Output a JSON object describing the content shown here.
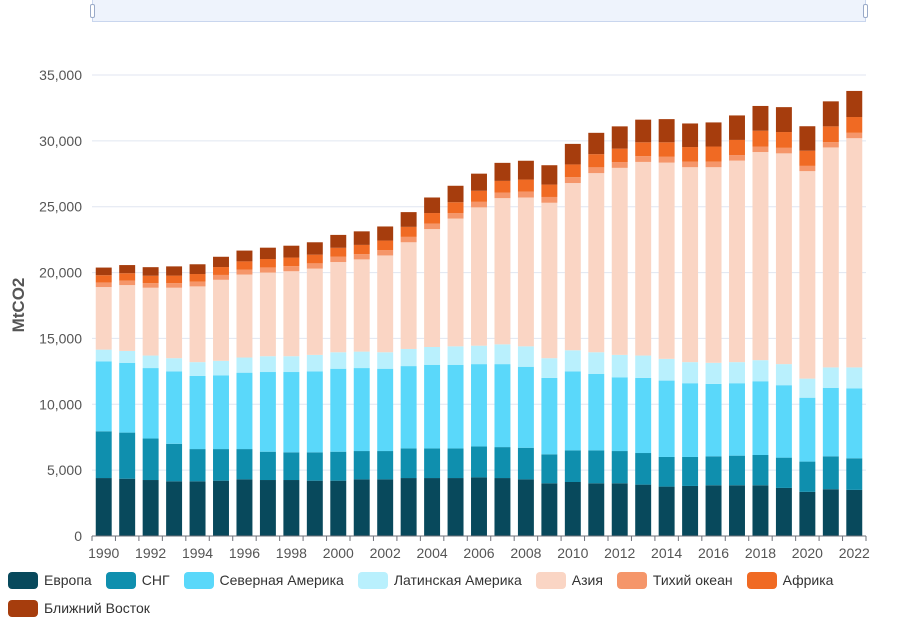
{
  "chart_data": {
    "type": "bar",
    "stacked": true,
    "title": "",
    "xlabel": "",
    "ylabel": "MtCO2",
    "ylim": [
      0,
      35000
    ],
    "yticks": [
      0,
      5000,
      10000,
      15000,
      20000,
      25000,
      30000,
      35000
    ],
    "ytick_labels": [
      "0",
      "5,000",
      "10,000",
      "15,000",
      "20,000",
      "25,000",
      "30,000",
      "35,000"
    ],
    "xtick_labels": [
      "1990",
      "1992",
      "1994",
      "1996",
      "1998",
      "2000",
      "2002",
      "2004",
      "2006",
      "2008",
      "2010",
      "2012",
      "2014",
      "2016",
      "2018",
      "2020",
      "2022"
    ],
    "legend_position": "bottom",
    "grid": true,
    "categories": [
      "1990",
      "1991",
      "1992",
      "1993",
      "1994",
      "1995",
      "1996",
      "1997",
      "1998",
      "1999",
      "2000",
      "2001",
      "2002",
      "2003",
      "2004",
      "2005",
      "2006",
      "2007",
      "2008",
      "2009",
      "2010",
      "2011",
      "2012",
      "2013",
      "2014",
      "2015",
      "2016",
      "2017",
      "2018",
      "2019",
      "2020",
      "2021",
      "2022"
    ],
    "series": [
      {
        "name": "Европа",
        "color": "#08495c",
        "values": [
          4400,
          4350,
          4250,
          4150,
          4150,
          4200,
          4300,
          4250,
          4250,
          4200,
          4200,
          4300,
          4300,
          4400,
          4400,
          4400,
          4450,
          4400,
          4300,
          4000,
          4100,
          4000,
          4000,
          3900,
          3750,
          3800,
          3850,
          3850,
          3850,
          3650,
          3350,
          3550,
          3500
        ]
      },
      {
        "name": "СНГ",
        "color": "#0f8fae",
        "values": [
          3550,
          3500,
          3150,
          2850,
          2450,
          2400,
          2300,
          2150,
          2100,
          2150,
          2200,
          2150,
          2150,
          2250,
          2250,
          2250,
          2350,
          2350,
          2400,
          2200,
          2400,
          2500,
          2450,
          2400,
          2250,
          2200,
          2200,
          2250,
          2300,
          2300,
          2300,
          2500,
          2400
        ]
      },
      {
        "name": "Северная Америка",
        "color": "#5ad8fa",
        "values": [
          5300,
          5300,
          5350,
          5500,
          5550,
          5600,
          5800,
          6050,
          6100,
          6150,
          6300,
          6300,
          6250,
          6250,
          6350,
          6350,
          6250,
          6300,
          6150,
          5800,
          6000,
          5800,
          5600,
          5700,
          5800,
          5600,
          5500,
          5500,
          5600,
          5500,
          4850,
          5200,
          5300
        ]
      },
      {
        "name": "Латинская Америка",
        "color": "#b9f0fd",
        "values": [
          900,
          900,
          950,
          1000,
          1050,
          1100,
          1150,
          1200,
          1200,
          1250,
          1250,
          1250,
          1250,
          1300,
          1350,
          1400,
          1400,
          1500,
          1550,
          1500,
          1600,
          1650,
          1700,
          1700,
          1650,
          1600,
          1600,
          1600,
          1600,
          1600,
          1450,
          1550,
          1600
        ]
      },
      {
        "name": "Азия",
        "color": "#fad5c4",
        "values": [
          4750,
          5000,
          5150,
          5350,
          5750,
          6150,
          6300,
          6350,
          6450,
          6550,
          6850,
          7000,
          7350,
          8100,
          8950,
          9700,
          10500,
          11100,
          11300,
          11800,
          12700,
          13600,
          14200,
          14700,
          14900,
          14800,
          14850,
          15300,
          15800,
          16000,
          15750,
          16700,
          17400
        ]
      },
      {
        "name": "Тихий океан",
        "color": "#f5966a",
        "values": [
          350,
          350,
          350,
          350,
          360,
          370,
          380,
          390,
          390,
          400,
          400,
          400,
          410,
          410,
          420,
          420,
          420,
          430,
          440,
          440,
          440,
          440,
          440,
          440,
          440,
          430,
          420,
          420,
          420,
          420,
          400,
          400,
          410
        ]
      },
      {
        "name": "Африка",
        "color": "#f06a23",
        "values": [
          550,
          550,
          560,
          570,
          580,
          600,
          620,
          640,
          650,
          660,
          680,
          700,
          720,
          760,
          800,
          820,
          840,
          880,
          920,
          940,
          970,
          1000,
          1020,
          1050,
          1100,
          1100,
          1150,
          1150,
          1200,
          1200,
          1150,
          1200,
          1200
        ]
      },
      {
        "name": "Ближний Восток",
        "color": "#a63d0d",
        "values": [
          580,
          620,
          650,
          700,
          740,
          780,
          820,
          860,
          900,
          940,
          980,
          1030,
          1070,
          1120,
          1180,
          1250,
          1300,
          1370,
          1430,
          1470,
          1560,
          1620,
          1690,
          1720,
          1760,
          1790,
          1830,
          1860,
          1880,
          1890,
          1860,
          1900,
          1980
        ]
      }
    ]
  },
  "zoom": {
    "start_label": "",
    "end_label": ""
  }
}
